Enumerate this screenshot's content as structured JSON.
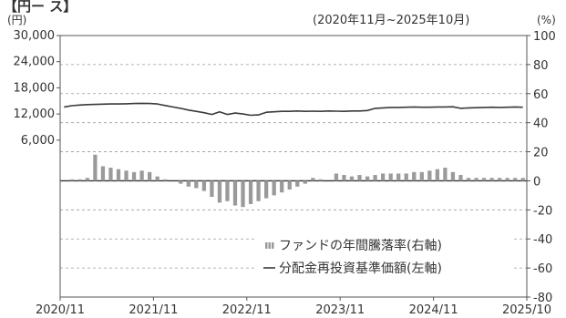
{
  "header": {
    "title_fragment": "【円ー ス】",
    "period": "(2020年11月~2025年10月)",
    "left_unit": "(円)",
    "right_unit": "(%)"
  },
  "chart_data": {
    "type": "bar",
    "x_tick_labels": [
      "2020/11",
      "2021/11",
      "2022/11",
      "2023/11",
      "2024/11",
      "2025/10"
    ],
    "left_axis": {
      "ticks": [
        "30,000",
        "24,000",
        "18,000",
        "12,000",
        "6,000"
      ],
      "ylim": [
        -30000,
        30000
      ]
    },
    "right_axis": {
      "ticks": [
        "100",
        "80",
        "60",
        "40",
        "20",
        "0",
        "-20",
        "-40",
        "-60",
        "-80"
      ],
      "ylim": [
        -80,
        100
      ]
    },
    "grid": "dashed-horizontal",
    "legend_position": "bottom-right",
    "series": [
      {
        "name": "ファンドの年間騰落率(右軸)",
        "kind": "bar",
        "axis": "right",
        "color": "#9a9a9a",
        "values": [
          0,
          1,
          1,
          2,
          18,
          10,
          9,
          8,
          7,
          6,
          7,
          6,
          3,
          1,
          0,
          -2,
          -4,
          -5,
          -7,
          -11,
          -15,
          -14,
          -17,
          -18,
          -16,
          -14,
          -12,
          -10,
          -8,
          -6,
          -4,
          -2,
          2,
          1,
          0,
          5,
          4,
          3,
          4,
          3,
          4,
          5,
          5,
          5,
          5,
          6,
          6,
          7,
          8,
          9,
          6,
          4,
          2,
          2,
          2,
          2,
          2,
          2,
          2,
          2
        ]
      },
      {
        "name": "分配金再投資基準価額(左軸)",
        "kind": "line",
        "axis": "left",
        "color": "#3a3a3a",
        "values": [
          13600,
          13900,
          14050,
          14150,
          14200,
          14250,
          14300,
          14300,
          14350,
          14400,
          14450,
          14400,
          14300,
          13950,
          13600,
          13300,
          12900,
          12600,
          12300,
          11900,
          12500,
          11900,
          12200,
          12000,
          11700,
          11800,
          12400,
          12500,
          12600,
          12600,
          12700,
          12600,
          12650,
          12600,
          12700,
          12650,
          12600,
          12700,
          12700,
          12800,
          13300,
          13400,
          13500,
          13500,
          13550,
          13600,
          13550,
          13550,
          13600,
          13600,
          13650,
          13300,
          13400,
          13450,
          13500,
          13550,
          13500,
          13550,
          13600,
          13550
        ]
      }
    ]
  }
}
